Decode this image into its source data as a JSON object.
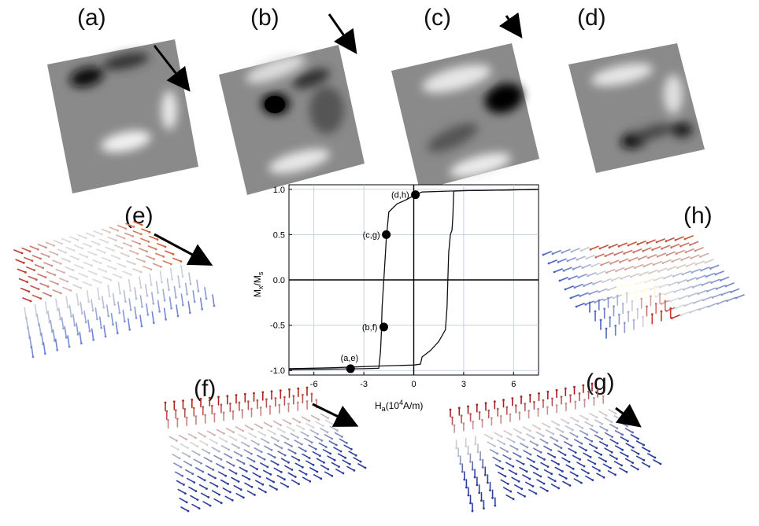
{
  "panel_labels": {
    "a": "(a)",
    "b": "(b)",
    "c": "(c)",
    "d": "(d)",
    "e": "(e)",
    "f": "(f)",
    "g": "(g)",
    "h": "(h)"
  },
  "colors": {
    "axis": "#000000",
    "grid": "#b9c7d9",
    "curve": "#111111",
    "spin_red": "#c0392b",
    "spin_blue": "#2c3e9c",
    "spin_white": "#d9d9d9"
  },
  "chart_data": {
    "type": "line",
    "xlabel_main": "H",
    "xlabel_sub": "a",
    "xlabel_rest": "(10",
    "xlabel_sup": "4",
    "xlabel_tail": "A/m)",
    "ylabel_main": "M",
    "ylabel_sub1": "x",
    "ylabel_mid": "/M",
    "ylabel_sub2": "s",
    "xlim": [
      -7.5,
      7.5
    ],
    "ylim": [
      -1.05,
      1.05
    ],
    "xticks": [
      -6,
      -3,
      0,
      3,
      6
    ],
    "yticks": [
      -1.0,
      -0.5,
      0.0,
      0.5,
      1.0
    ],
    "xtick_labels": [
      "-6",
      "-3",
      "0",
      "3",
      "6"
    ],
    "ytick_labels": [
      "-1.0",
      "-0.5",
      "0.0",
      "0.5",
      "1.0"
    ],
    "grid": true,
    "series": [
      {
        "x": [
          -7.5,
          -5,
          -3,
          -2.1,
          -2.0,
          -1.95,
          -1.9,
          -1.8,
          -1.7,
          -1.65,
          -1.6,
          -1.5,
          -1.0,
          -0.5,
          0.0,
          0.5,
          2.0,
          3.0,
          5.0,
          7.5
        ],
        "y": [
          -0.99,
          -0.985,
          -0.98,
          -0.975,
          -0.8,
          -0.6,
          -0.3,
          0.0,
          0.3,
          0.45,
          0.55,
          0.75,
          0.84,
          0.88,
          0.93,
          0.97,
          0.98,
          0.985,
          0.99,
          1.0
        ]
      },
      {
        "x": [
          7.5,
          5,
          3,
          2.4,
          2.35,
          2.3,
          2.2,
          2.1,
          2.05,
          2.0,
          1.9,
          1.5,
          1.0,
          0.5,
          0.4,
          0.0,
          -2,
          -5,
          -7.5
        ],
        "y": [
          1.0,
          0.99,
          0.985,
          0.98,
          0.7,
          0.55,
          0.5,
          0.3,
          0.0,
          -0.3,
          -0.55,
          -0.68,
          -0.78,
          -0.85,
          -0.93,
          -0.94,
          -0.95,
          -0.97,
          -0.98
        ]
      }
    ],
    "annotations": [
      {
        "label": "(a,e)",
        "x": -3.8,
        "y": -0.98
      },
      {
        "label": "(b,f)",
        "x": -1.8,
        "y": -0.52
      },
      {
        "label": "(c,g)",
        "x": -1.65,
        "y": 0.5
      },
      {
        "label": "(d,h)",
        "x": 0.1,
        "y": 0.94
      }
    ]
  }
}
